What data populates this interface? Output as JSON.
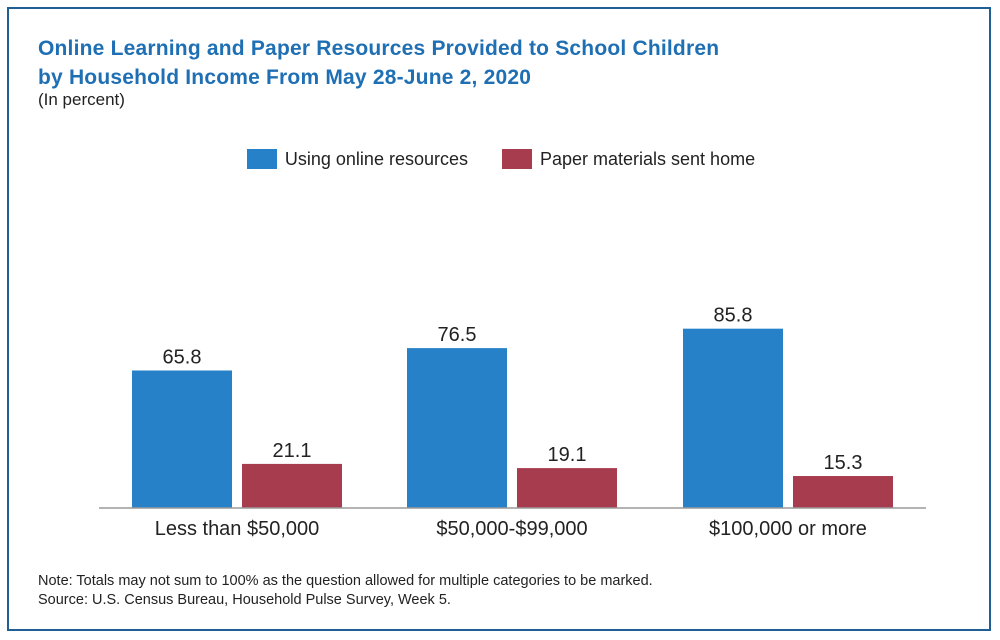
{
  "chart_data": {
    "type": "bar",
    "title": "Online Learning and Paper Resources Provided to School Children by Household Income From May 28-June 2, 2020",
    "title_lines": [
      "Online Learning and Paper Resources Provided to School Children",
      "by Household Income From May 28-June 2, 2020"
    ],
    "subtitle": "(In percent)",
    "categories": [
      "Less than $50,000",
      "$50,000-$99,000",
      "$100,000 or more"
    ],
    "series": [
      {
        "name": "Using online resources",
        "color": "#2681c8",
        "values": [
          65.8,
          76.5,
          85.8
        ],
        "labels": [
          "65.8",
          "76.5",
          "85.8"
        ]
      },
      {
        "name": "Paper materials sent home",
        "color": "#a83c4f",
        "values": [
          21.1,
          19.1,
          15.3
        ],
        "labels": [
          "21.1",
          "19.1",
          "15.3"
        ]
      }
    ],
    "ylim": [
      0,
      100
    ],
    "grid": false,
    "legend_position": "top-center",
    "notes": [
      "Note: Totals may not sum to 100% as the question allowed for multiple categories to be marked.",
      "Source: U.S. Census Bureau, Household Pulse Survey, Week 5."
    ]
  }
}
